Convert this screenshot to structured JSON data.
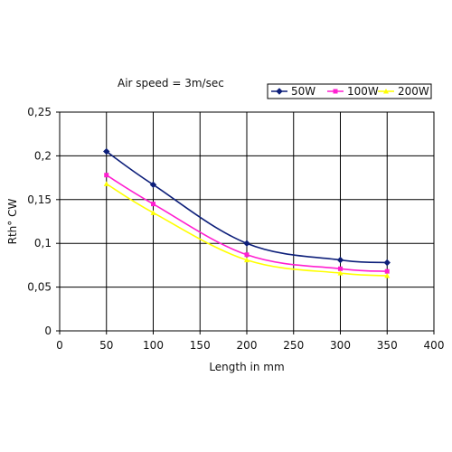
{
  "chart_data": {
    "type": "line",
    "annotation": "Air speed = 3m/sec",
    "xlabel": "Length in mm",
    "ylabel": "Rth° CW",
    "xlim": [
      0,
      400
    ],
    "ylim": [
      0,
      0.25
    ],
    "x_ticks": [
      0,
      50,
      100,
      150,
      200,
      250,
      300,
      350,
      400
    ],
    "y_ticks": [
      0,
      0.05,
      0.1,
      0.15,
      0.2,
      0.25
    ],
    "x_tick_labels": [
      "0",
      "50",
      "100",
      "150",
      "200",
      "250",
      "300",
      "350",
      "400"
    ],
    "y_tick_labels": [
      "0",
      "0,05",
      "0,1",
      "0,15",
      "0,2",
      "0,25"
    ],
    "grid": true,
    "legend_position": "top-right",
    "x": [
      50,
      100,
      200,
      300,
      350
    ],
    "series": [
      {
        "name": "50W",
        "color": "#0d1f7a",
        "marker": "diamond",
        "values": [
          0.205,
          0.167,
          0.1,
          0.081,
          0.078
        ]
      },
      {
        "name": "100W",
        "color": "#ff1fd0",
        "marker": "square",
        "values": [
          0.178,
          0.145,
          0.087,
          0.071,
          0.068
        ]
      },
      {
        "name": "200W",
        "color": "#ffff00",
        "marker": "triangle",
        "values": [
          0.168,
          0.135,
          0.081,
          0.066,
          0.063
        ]
      }
    ]
  }
}
